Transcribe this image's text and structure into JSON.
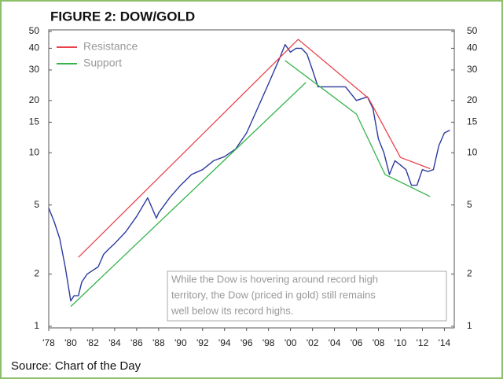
{
  "chart_data": {
    "type": "line",
    "title": "FIGURE 2: DOW/GOLD",
    "source": "Source: Chart of the Day",
    "annotation": [
      "While the Dow is hovering around record high",
      "territory, the Dow (priced in gold) still remains",
      "well below its record highs."
    ],
    "log_y": true,
    "legend": "upper left",
    "xlim": [
      1978,
      2014.9
    ],
    "xticks": [
      {
        "value": 1978,
        "label": "'78"
      },
      {
        "value": 1980,
        "label": "'80"
      },
      {
        "value": 1982,
        "label": "'82"
      },
      {
        "value": 1984,
        "label": "'84"
      },
      {
        "value": 1986,
        "label": "'86"
      },
      {
        "value": 1988,
        "label": "'88"
      },
      {
        "value": 1990,
        "label": "'90"
      },
      {
        "value": 1992,
        "label": "'92"
      },
      {
        "value": 1994,
        "label": "'94"
      },
      {
        "value": 1996,
        "label": "'96"
      },
      {
        "value": 1998,
        "label": "'98"
      },
      {
        "value": 2000,
        "label": "'00"
      },
      {
        "value": 2002,
        "label": "'02"
      },
      {
        "value": 2004,
        "label": "'04"
      },
      {
        "value": 2006,
        "label": "'06"
      },
      {
        "value": 2008,
        "label": "'08"
      },
      {
        "value": 2010,
        "label": "'10"
      },
      {
        "value": 2012,
        "label": "'12"
      },
      {
        "value": 2014,
        "label": "'14"
      }
    ],
    "ylim": [
      1,
      50
    ],
    "yticks": [
      1,
      2,
      5,
      10,
      15,
      20,
      30,
      40,
      50
    ],
    "series": [
      {
        "name": "Dow/Gold",
        "color": "#2b3a9e",
        "legend": false,
        "x": [
          1978,
          1978.5,
          1979,
          1979.5,
          1980,
          1980.3,
          1980.7,
          1981,
          1981.5,
          1982,
          1982.5,
          1983,
          1983.5,
          1984,
          1985,
          1986,
          1987,
          1987.8,
          1988,
          1989,
          1990,
          1991,
          1992,
          1993,
          1994,
          1995,
          1996,
          1997,
          1998,
          1999,
          1999.5,
          2000,
          2000.5,
          2001,
          2001.5,
          2002,
          2002.5,
          2003,
          2004,
          2005,
          2006,
          2007,
          2007.5,
          2008,
          2008.5,
          2009,
          2009.5,
          2010,
          2010.5,
          2011,
          2011.5,
          2012,
          2012.5,
          2013,
          2013.5,
          2014,
          2014.5
        ],
        "values": [
          4.8,
          4,
          3.2,
          2.2,
          1.4,
          1.5,
          1.5,
          1.8,
          2.0,
          2.1,
          2.2,
          2.6,
          2.8,
          3.0,
          3.5,
          4.3,
          5.5,
          4.2,
          4.5,
          5.5,
          6.5,
          7.5,
          8,
          9,
          9.5,
          10.5,
          13,
          18,
          25,
          35,
          42,
          38,
          40,
          40,
          37,
          30,
          24,
          24,
          24,
          24,
          20,
          21,
          18,
          12,
          10,
          7.5,
          9,
          8.5,
          8,
          6.5,
          6.5,
          8,
          7.8,
          8,
          11,
          13,
          13.5
        ]
      },
      {
        "name": "Resistance",
        "color": "#e8434b",
        "x": [
          1980.7,
          2000.7,
          2007.1,
          2010,
          2012.7
        ],
        "values": [
          2.5,
          45,
          20.6,
          9.4,
          8.1
        ]
      },
      {
        "name": "Support",
        "color": "#33b34a",
        "x": [
          1980,
          2001.4,
          2001.4,
          1999.5,
          2006,
          2008.6,
          2012.7
        ],
        "values": [
          1.3,
          25.4,
          null,
          34,
          16.7,
          7.5,
          5.6
        ]
      }
    ]
  }
}
